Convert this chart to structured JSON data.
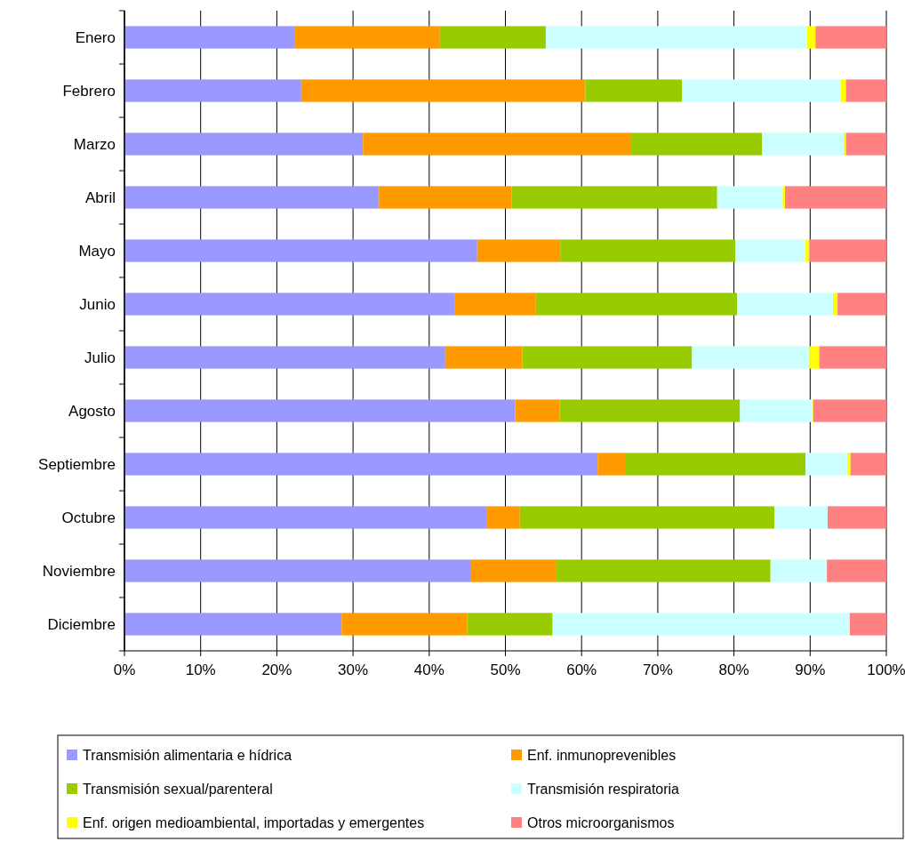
{
  "chart_data": {
    "type": "bar",
    "orientation": "horizontal",
    "stacked": true,
    "categories": [
      "Enero",
      "Febrero",
      "Marzo",
      "Abril",
      "Mayo",
      "Junio",
      "Julio",
      "Agosto",
      "Septiembre",
      "Octubre",
      "Noviembre",
      "Diciembre"
    ],
    "series": [
      {
        "name": "Transmisión alimentaria e hídrica",
        "color": "#9999ff",
        "values": [
          22.3,
          23.2,
          31.3,
          33.4,
          46.3,
          43.3,
          42.1,
          51.3,
          62.1,
          47.5,
          45.4,
          28.5
        ]
      },
      {
        "name": "Enf. inmunoprevenibles",
        "color": "#ff9900",
        "values": [
          19.1,
          37.3,
          35.1,
          17.4,
          10.9,
          10.7,
          10.1,
          5.8,
          3.6,
          4.4,
          11.3,
          16.5
        ]
      },
      {
        "name": "Transmisión sexual/parenteral",
        "color": "#99cc00",
        "values": [
          13.9,
          12.7,
          17.3,
          27.0,
          23.0,
          26.4,
          22.3,
          23.7,
          23.7,
          33.4,
          28.1,
          11.2
        ]
      },
      {
        "name": "Transmisión respiratoria",
        "color": "#ccffff",
        "values": [
          34.3,
          20.8,
          10.7,
          8.6,
          9.2,
          12.6,
          15.4,
          9.5,
          5.5,
          7.0,
          7.4,
          39.0
        ]
      },
      {
        "name": "Enf. origen medioambiental, importadas y emergentes",
        "color": "#ffff00",
        "values": [
          1.1,
          0.7,
          0.3,
          0.3,
          0.5,
          0.6,
          1.3,
          0.1,
          0.4,
          0,
          0,
          0
        ]
      },
      {
        "name": "Otros microorganismos",
        "color": "#ff8080",
        "values": [
          9.3,
          5.3,
          5.3,
          13.3,
          10.1,
          6.4,
          8.8,
          9.6,
          4.7,
          7.7,
          7.8,
          4.8
        ]
      }
    ],
    "xlim": [
      0,
      100
    ],
    "xticks": [
      {
        "value": 0,
        "label": "0%"
      },
      {
        "value": 10,
        "label": "10%"
      },
      {
        "value": 20,
        "label": "20%"
      },
      {
        "value": 30,
        "label": "30%"
      },
      {
        "value": 40,
        "label": "40%"
      },
      {
        "value": 50,
        "label": "50%"
      },
      {
        "value": 60,
        "label": "60%"
      },
      {
        "value": 70,
        "label": "70%"
      },
      {
        "value": 80,
        "label": "80%"
      },
      {
        "value": 90,
        "label": "90%"
      },
      {
        "value": 100,
        "label": "100%"
      }
    ],
    "grid": "x",
    "legend": "bottom"
  }
}
